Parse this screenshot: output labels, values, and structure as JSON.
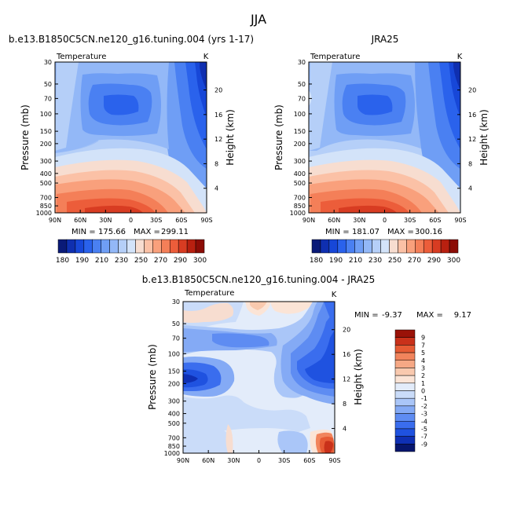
{
  "page_title": "JJA",
  "colors": {
    "abs": [
      "#0a1a78",
      "#0f2fb0",
      "#1747d8",
      "#2a62ec",
      "#4a80f2",
      "#6f9ef5",
      "#93b8f7",
      "#b5cff8",
      "#d3e3f9",
      "#f7ddd0",
      "#fbc1a6",
      "#f9a07c",
      "#f47f58",
      "#ec5d3a",
      "#d83c22",
      "#b82010",
      "#8c0c06"
    ],
    "diff": [
      "#07166e",
      "#0f30b4",
      "#1f52e0",
      "#3a6dee",
      "#5e8cf2",
      "#84aaf5",
      "#aac6f8",
      "#cadcf9",
      "#e3ecfa",
      "#fbe4d6",
      "#f9c9ae",
      "#f6a885",
      "#f1845c",
      "#e65b34",
      "#c9311a",
      "#9a1208"
    ]
  },
  "chart_data": [
    {
      "type": "heatmap",
      "title": "b.e13.B1850C5CN.ne120_g16.tuning.004 (yrs 1-17)",
      "subtitle": "Temperature",
      "units": "K",
      "xlabel": "",
      "ylabel": "Pressure (mb)",
      "ylabel_right": "Height (km)",
      "x_ticks": [
        "90N",
        "60N",
        "30N",
        "0",
        "30S",
        "60S",
        "90S"
      ],
      "y_ticks": [
        "30",
        "50",
        "70",
        "100",
        "150",
        "200",
        "300",
        "400",
        "500",
        "700",
        "850",
        "1000"
      ],
      "y_ticks_right": [
        "20",
        "16",
        "12",
        "8",
        "4"
      ],
      "min": 175.66,
      "max": 299.11,
      "min_label": "MIN =",
      "max_label": "MAX =",
      "colorbar_levels": [
        "180",
        "190",
        "210",
        "230",
        "250",
        "270",
        "290",
        "300"
      ]
    },
    {
      "type": "heatmap",
      "title": "JRA25",
      "subtitle": "Temperature",
      "units": "K",
      "xlabel": "",
      "ylabel": "Pressure (mb)",
      "ylabel_right": "Height (km)",
      "x_ticks": [
        "90N",
        "60N",
        "30N",
        "0",
        "30S",
        "60S",
        "90S"
      ],
      "y_ticks": [
        "30",
        "50",
        "70",
        "100",
        "150",
        "200",
        "300",
        "400",
        "500",
        "700",
        "850",
        "1000"
      ],
      "y_ticks_right": [
        "20",
        "16",
        "12",
        "8",
        "4"
      ],
      "min": 181.07,
      "max": 300.16,
      "min_label": "MIN =",
      "max_label": "MAX =",
      "colorbar_levels": [
        "180",
        "190",
        "210",
        "230",
        "250",
        "270",
        "290",
        "300"
      ]
    },
    {
      "type": "heatmap",
      "title": "b.e13.B1850C5CN.ne120_g16.tuning.004 - JRA25",
      "subtitle": "Temperature",
      "units": "K",
      "xlabel": "",
      "ylabel": "Pressure (mb)",
      "ylabel_right": "Height (km)",
      "x_ticks": [
        "90N",
        "60N",
        "30N",
        "0",
        "30S",
        "60S",
        "90S"
      ],
      "y_ticks": [
        "30",
        "50",
        "70",
        "100",
        "150",
        "200",
        "300",
        "400",
        "500",
        "700",
        "850",
        "1000"
      ],
      "y_ticks_right": [
        "20",
        "16",
        "12",
        "8",
        "4"
      ],
      "min": -9.37,
      "max": 9.17,
      "min_label": "MIN =",
      "max_label": "MAX =",
      "colorbar_levels": [
        "9",
        "7",
        "5",
        "4",
        "3",
        "2",
        "1",
        "0",
        "-1",
        "-2",
        "-3",
        "-4",
        "-5",
        "-7",
        "-9"
      ]
    }
  ]
}
